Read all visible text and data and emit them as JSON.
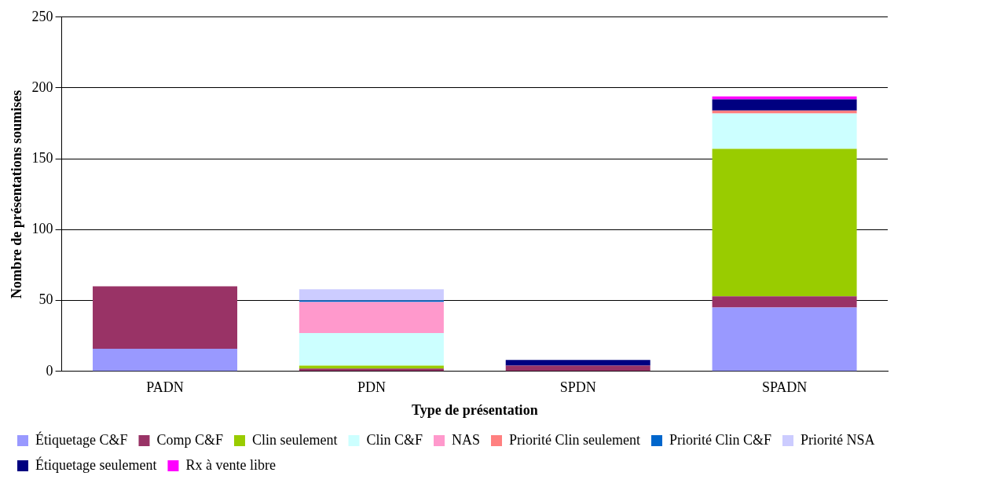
{
  "chart_data": {
    "type": "bar",
    "stacked": true,
    "xlabel": "Type de présentation",
    "ylabel": "Nombre de présentations soumises",
    "categories": [
      "PADN",
      "PDN",
      "SPDN",
      "SPADN"
    ],
    "ylim": [
      0,
      250
    ],
    "yticks": [
      0,
      50,
      100,
      150,
      200,
      250
    ],
    "grid": "y",
    "legend": "bottom",
    "series": [
      {
        "name": "Étiquetage C&F",
        "color": "#9999ff",
        "values": [
          16,
          0,
          0,
          45
        ]
      },
      {
        "name": "Comp C&F",
        "color": "#993366",
        "values": [
          44,
          2,
          4,
          8
        ]
      },
      {
        "name": "Clin seulement",
        "color": "#99cc00",
        "values": [
          0,
          2,
          0,
          104
        ]
      },
      {
        "name": "Clin C&F",
        "color": "#ccffff",
        "values": [
          0,
          23,
          0,
          25
        ]
      },
      {
        "name": "NAS",
        "color": "#ff99cc",
        "values": [
          0,
          22,
          0,
          0
        ]
      },
      {
        "name": "Priorité Clin seulement",
        "color": "#ff8080",
        "values": [
          0,
          0,
          0,
          2
        ]
      },
      {
        "name": "Priorité Clin C&F",
        "color": "#0066cc",
        "values": [
          0,
          1,
          0,
          0
        ]
      },
      {
        "name": "Priorité NSA",
        "color": "#ccccff",
        "values": [
          0,
          8,
          0,
          0
        ]
      },
      {
        "name": "Étiquetage seulement",
        "color": "#000080",
        "values": [
          0,
          0,
          4,
          8
        ]
      },
      {
        "name": "Rx à vente libre",
        "color": "#ff00ff",
        "values": [
          0,
          0,
          0,
          2
        ]
      }
    ]
  }
}
